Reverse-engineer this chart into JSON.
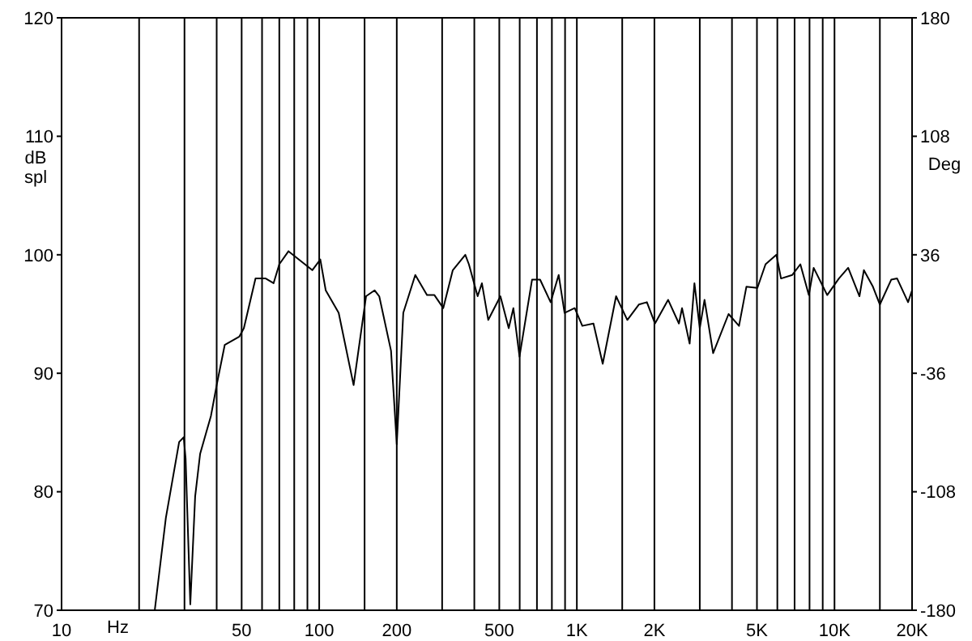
{
  "chart_data": {
    "type": "line",
    "xlabel": "Hz",
    "ylabel": "dB spl",
    "y2label": "Deg",
    "log": "x",
    "grid": true,
    "xlim": [
      10,
      20000
    ],
    "xticks": [
      10,
      {
        "value": 20,
        "label": null
      },
      {
        "value": 30,
        "label": null
      },
      {
        "value": 40,
        "label": null
      },
      50,
      {
        "value": 60,
        "label": null
      },
      {
        "value": 70,
        "label": null
      },
      {
        "value": 80,
        "label": null
      },
      {
        "value": 90,
        "label": null
      },
      100,
      {
        "value": 150,
        "label": null
      },
      200,
      {
        "value": 300,
        "label": null
      },
      {
        "value": 400,
        "label": null
      },
      500,
      {
        "value": 600,
        "label": null
      },
      {
        "value": 700,
        "label": null
      },
      {
        "value": 800,
        "label": null
      },
      {
        "value": 900,
        "label": null
      },
      {
        "value": 1000,
        "label": "1K"
      },
      {
        "value": 1500,
        "label": null
      },
      {
        "value": 2000,
        "label": "2K"
      },
      {
        "value": 3000,
        "label": null
      },
      {
        "value": 4000,
        "label": null
      },
      {
        "value": 5000,
        "label": "5K"
      },
      {
        "value": 6000,
        "label": null
      },
      {
        "value": 7000,
        "label": null
      },
      {
        "value": 8000,
        "label": null
      },
      {
        "value": 9000,
        "label": null
      },
      {
        "value": 10000,
        "label": "10K"
      },
      {
        "value": 15000,
        "label": null
      },
      {
        "value": 20000,
        "label": "20K"
      }
    ],
    "ylim": [
      70,
      120
    ],
    "yticks": [
      70,
      80,
      90,
      100,
      110,
      120
    ],
    "y2lim": [
      -180,
      180
    ],
    "y2ticks": [
      -180,
      -108,
      -36,
      36,
      108,
      180
    ],
    "x": [
      23,
      25.4,
      28.6,
      29.8,
      30.3,
      31.6,
      33,
      34.5,
      38,
      40,
      43,
      49,
      51,
      56.6,
      62,
      66.5,
      70,
      76,
      94,
      101,
      106,
      119,
      136,
      152,
      164,
      171,
      190,
      200,
      212,
      236,
      262,
      280,
      303,
      330,
      369,
      381,
      412,
      428,
      453,
      505,
      544,
      567,
      599,
      670,
      720,
      791,
      850,
      896,
      981,
      1050,
      1160,
      1260,
      1420,
      1570,
      1740,
      1870,
      2010,
      2260,
      2490,
      2560,
      2740,
      2860,
      3000,
      3130,
      3380,
      3880,
      4260,
      4550,
      5020,
      5400,
      5950,
      6200,
      6860,
      7370,
      7950,
      8300,
      9370,
      10400,
      11300,
      12500,
      13000,
      14100,
      15000,
      16600,
      17500,
      19300,
      20000
    ],
    "series": [
      {
        "color": "#000000",
        "values": [
          70,
          77.8,
          84.2,
          84.6,
          82.8,
          70.5,
          79.6,
          83.2,
          86.4,
          89,
          92.4,
          93.1,
          93.8,
          98,
          98,
          97.6,
          99.2,
          100.3,
          98.7,
          99.6,
          97,
          95.1,
          89,
          96.5,
          97,
          96.5,
          91.9,
          84,
          95.1,
          98.3,
          96.6,
          96.6,
          95.5,
          98.7,
          100,
          99.2,
          96.5,
          97.6,
          94.5,
          96.5,
          93.8,
          95.5,
          91.4,
          97.9,
          97.9,
          96,
          98.3,
          95.1,
          95.5,
          94,
          94.2,
          90.8,
          96.5,
          94.5,
          95.8,
          96,
          94.2,
          96.2,
          94.2,
          95.5,
          92.5,
          97.6,
          93.8,
          96.2,
          91.7,
          95,
          94,
          97.3,
          97.2,
          99.2,
          100,
          98,
          98.3,
          99.2,
          96.6,
          98.9,
          96.6,
          98,
          98.9,
          96.5,
          98.7,
          97.3,
          95.8,
          97.9,
          98,
          96,
          97
        ]
      }
    ]
  }
}
